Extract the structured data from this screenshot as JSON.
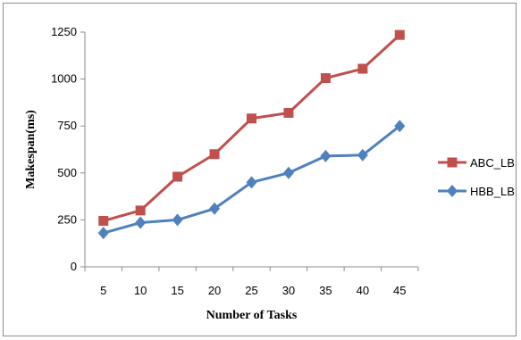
{
  "chart_data": {
    "type": "line",
    "title": "",
    "xlabel": "Number  of Tasks",
    "ylabel": "Makespan(ms)",
    "x": [
      5,
      10,
      15,
      20,
      25,
      30,
      35,
      40,
      45
    ],
    "ylim": [
      0,
      1250
    ],
    "yticks": [
      0,
      250,
      500,
      750,
      1000,
      1250
    ],
    "grid": false,
    "legend_position": "right",
    "series": [
      {
        "name": "ABC_LB",
        "color": "#c0504d",
        "marker": "square",
        "values": [
          245,
          300,
          480,
          600,
          790,
          820,
          1005,
          1055,
          1235
        ]
      },
      {
        "name": "HBB_LB",
        "color": "#4f81bd",
        "marker": "diamond",
        "values": [
          180,
          235,
          250,
          310,
          450,
          500,
          590,
          595,
          750
        ]
      }
    ]
  }
}
